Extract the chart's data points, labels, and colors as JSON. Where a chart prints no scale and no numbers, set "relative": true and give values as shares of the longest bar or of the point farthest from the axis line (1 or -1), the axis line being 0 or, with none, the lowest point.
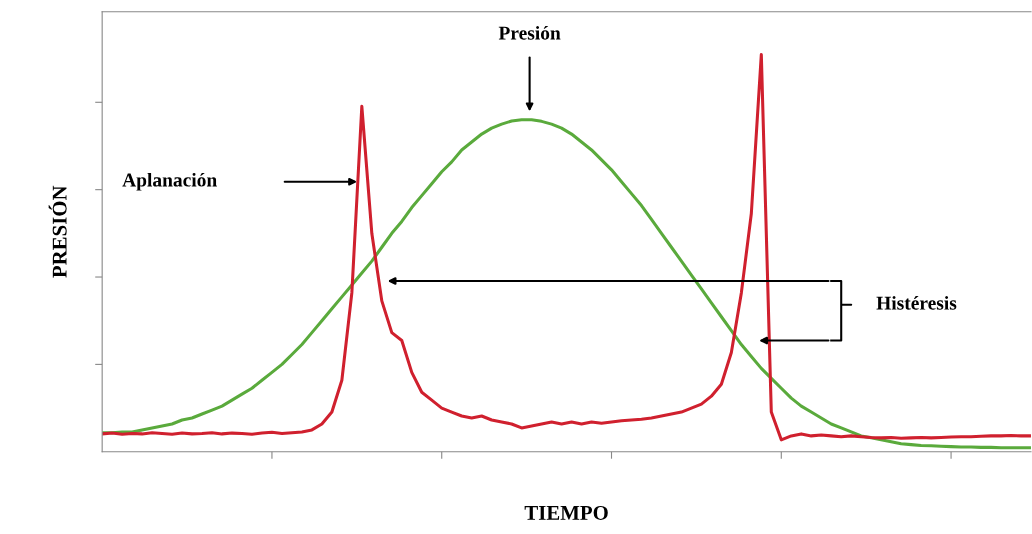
{
  "chart_data": {
    "type": "line",
    "relative": true,
    "xlabel": "TIEMPO",
    "ylabel": "PRESIÓN",
    "categories": [
      null,
      null,
      null,
      null,
      null,
      null,
      null,
      null,
      null,
      null,
      null,
      null,
      null,
      null,
      null,
      null,
      null,
      null,
      null,
      null,
      null,
      null,
      null,
      null,
      null,
      null,
      null,
      null,
      null,
      null,
      null,
      null,
      null,
      null,
      null,
      null,
      null,
      null,
      null,
      null,
      null,
      null,
      null,
      null,
      null,
      null,
      null,
      null,
      null,
      null,
      null,
      null,
      null,
      null,
      null,
      null,
      null,
      null,
      null,
      null,
      null,
      null,
      null,
      null,
      null,
      null,
      null,
      null,
      null,
      null,
      null,
      null,
      null,
      null,
      null,
      null,
      null,
      null,
      null,
      null,
      null,
      null,
      null,
      null,
      null,
      null,
      null,
      null,
      null,
      null,
      null,
      null,
      null,
      null
    ],
    "series": [
      {
        "color": "#5aaa3c",
        "values": [
          0.048,
          0.048,
          0.05,
          0.05,
          0.055,
          0.06,
          0.065,
          0.07,
          0.08,
          0.085,
          0.095,
          0.105,
          0.115,
          0.13,
          0.145,
          0.16,
          0.18,
          0.2,
          0.22,
          0.245,
          0.27,
          0.3,
          0.33,
          0.36,
          0.39,
          0.42,
          0.45,
          0.48,
          0.515,
          0.55,
          0.58,
          0.615,
          0.645,
          0.675,
          0.705,
          0.73,
          0.76,
          0.78,
          0.8,
          0.815,
          0.825,
          0.833,
          0.836,
          0.836,
          0.832,
          0.825,
          0.815,
          0.8,
          0.78,
          0.76,
          0.735,
          0.71,
          0.68,
          0.65,
          0.62,
          0.585,
          0.55,
          0.515,
          0.48,
          0.445,
          0.41,
          0.375,
          0.34,
          0.305,
          0.27,
          0.24,
          0.21,
          0.185,
          0.16,
          0.135,
          0.115,
          0.1,
          0.085,
          0.07,
          0.06,
          0.05,
          0.04,
          0.035,
          0.03,
          0.025,
          0.02,
          0.018,
          0.016,
          0.015,
          0.014,
          0.013,
          0.012,
          0.012,
          0.011,
          0.011,
          0.01,
          0.01,
          0.01,
          0.01
        ]
      },
      {
        "color": "#d0202e",
        "values": [
          0.045,
          0.047,
          0.044,
          0.046,
          0.045,
          0.048,
          0.046,
          0.044,
          0.047,
          0.045,
          0.046,
          0.048,
          0.045,
          0.047,
          0.046,
          0.044,
          0.047,
          0.049,
          0.046,
          0.048,
          0.05,
          0.055,
          0.07,
          0.1,
          0.18,
          0.4,
          0.87,
          0.55,
          0.38,
          0.3,
          0.28,
          0.2,
          0.15,
          0.13,
          0.11,
          0.1,
          0.09,
          0.085,
          0.09,
          0.08,
          0.075,
          0.07,
          0.06,
          0.065,
          0.07,
          0.075,
          0.07,
          0.075,
          0.07,
          0.075,
          0.072,
          0.075,
          0.078,
          0.08,
          0.082,
          0.085,
          0.09,
          0.095,
          0.1,
          0.11,
          0.12,
          0.14,
          0.17,
          0.25,
          0.4,
          0.6,
          1.0,
          0.1,
          0.03,
          0.04,
          0.045,
          0.04,
          0.042,
          0.04,
          0.038,
          0.04,
          0.038,
          0.036,
          0.035,
          0.036,
          0.034,
          0.035,
          0.036,
          0.035,
          0.036,
          0.037,
          0.038,
          0.038,
          0.039,
          0.04,
          0.04,
          0.041,
          0.04,
          0.04
        ]
      }
    ],
    "annotations": [
      "Presión",
      "Aplanación",
      "Histéresis"
    ]
  }
}
